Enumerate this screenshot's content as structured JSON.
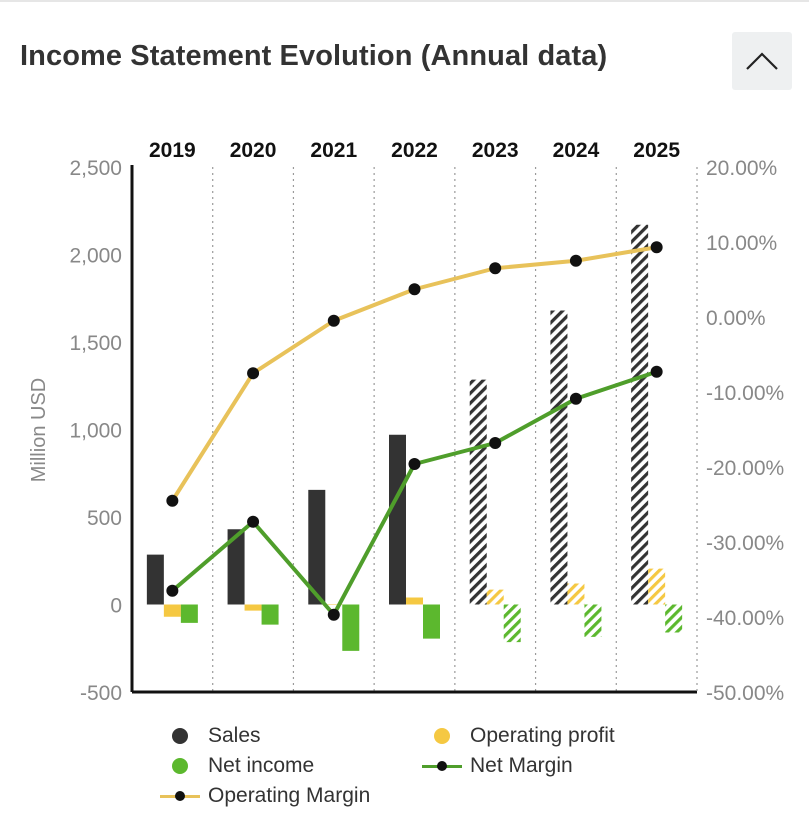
{
  "header": {
    "title": "Income Statement Evolution (Annual data)"
  },
  "colors": {
    "sales": "#333333",
    "operating_profit": "#f5c842",
    "net_income": "#5cb82e",
    "operating_margin_line": "#e8c25a",
    "net_margin_line": "#4f9e2b",
    "marker": "#111111"
  },
  "chart_data": {
    "type": "bar",
    "categories": [
      "2019",
      "2020",
      "2021",
      "2022",
      "2023",
      "2024",
      "2025"
    ],
    "forecast_from": "2023",
    "left_axis": {
      "label": "Million USD",
      "range": [
        -500,
        2500
      ],
      "ticks": [
        "-500",
        "0",
        "500",
        "1,000",
        "1,500",
        "2,000",
        "2,500"
      ],
      "tick_values": [
        -500,
        0,
        500,
        1000,
        1500,
        2000,
        2500
      ]
    },
    "right_axis": {
      "range": [
        -50,
        20
      ],
      "ticks": [
        "-50.00%",
        "-40.00%",
        "-30.00%",
        "-20.00%",
        "-10.00%",
        "0.00%",
        "10.00%",
        "20.00%"
      ],
      "tick_values": [
        -50,
        -40,
        -30,
        -20,
        -10,
        0,
        10,
        20
      ]
    },
    "series": [
      {
        "name": "Sales",
        "type": "bar",
        "axis": "left",
        "values": [
          285,
          430,
          655,
          970,
          1285,
          1680,
          2170
        ]
      },
      {
        "name": "Operating profit",
        "type": "bar",
        "axis": "left",
        "values": [
          -70,
          -35,
          0,
          40,
          85,
          120,
          205
        ]
      },
      {
        "name": "Net income",
        "type": "bar",
        "axis": "left",
        "values": [
          -105,
          -115,
          -265,
          -195,
          -215,
          -185,
          -160
        ]
      },
      {
        "name": "Operating Margin",
        "type": "line",
        "axis": "right",
        "values": [
          -24.5,
          -7.5,
          -0.5,
          3.7,
          6.5,
          7.5,
          9.3
        ]
      },
      {
        "name": "Net Margin",
        "type": "line",
        "axis": "right",
        "values": [
          -36.5,
          -27.3,
          -39.7,
          -19.6,
          -16.8,
          -10.9,
          -7.3
        ]
      }
    ],
    "grid": "vertical dotted separators between years",
    "legend_position": "bottom"
  },
  "legend": {
    "sales": "Sales",
    "operating_profit": "Operating profit",
    "net_income": "Net income",
    "net_margin": "Net Margin",
    "operating_margin": "Operating Margin"
  }
}
